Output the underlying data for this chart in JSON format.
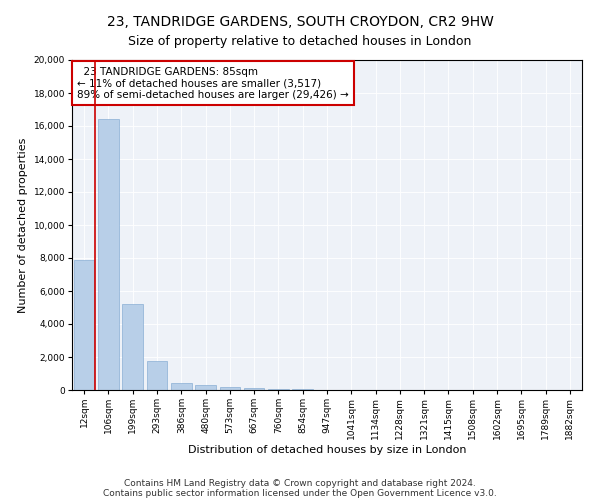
{
  "title": "23, TANDRIDGE GARDENS, SOUTH CROYDON, CR2 9HW",
  "subtitle": "Size of property relative to detached houses in London",
  "xlabel": "Distribution of detached houses by size in London",
  "ylabel": "Number of detached properties",
  "footnote1": "Contains HM Land Registry data © Crown copyright and database right 2024.",
  "footnote2": "Contains public sector information licensed under the Open Government Licence v3.0.",
  "annotation_line1": "  23 TANDRIDGE GARDENS: 85sqm",
  "annotation_line2": "← 11% of detached houses are smaller (3,517)",
  "annotation_line3": "89% of semi-detached houses are larger (29,426) →",
  "bar_color": "#b8cfe8",
  "bar_edge_color": "#8aafd4",
  "vline_color": "#cc0000",
  "annotation_box_color": "#cc0000",
  "categories": [
    "12sqm",
    "106sqm",
    "199sqm",
    "293sqm",
    "386sqm",
    "480sqm",
    "573sqm",
    "667sqm",
    "760sqm",
    "854sqm",
    "947sqm",
    "1041sqm",
    "1134sqm",
    "1228sqm",
    "1321sqm",
    "1415sqm",
    "1508sqm",
    "1602sqm",
    "1695sqm",
    "1789sqm",
    "1882sqm"
  ],
  "values": [
    7900,
    16400,
    5200,
    1750,
    420,
    330,
    175,
    125,
    85,
    70,
    0,
    0,
    0,
    0,
    0,
    0,
    0,
    0,
    0,
    0,
    0
  ],
  "ylim": [
    0,
    20000
  ],
  "yticks": [
    0,
    2000,
    4000,
    6000,
    8000,
    10000,
    12000,
    14000,
    16000,
    18000,
    20000
  ],
  "plot_background": "#eef2f8",
  "title_fontsize": 10,
  "subtitle_fontsize": 9,
  "axis_label_fontsize": 8,
  "tick_fontsize": 6.5,
  "annotation_fontsize": 7.5,
  "footnote_fontsize": 6.5
}
